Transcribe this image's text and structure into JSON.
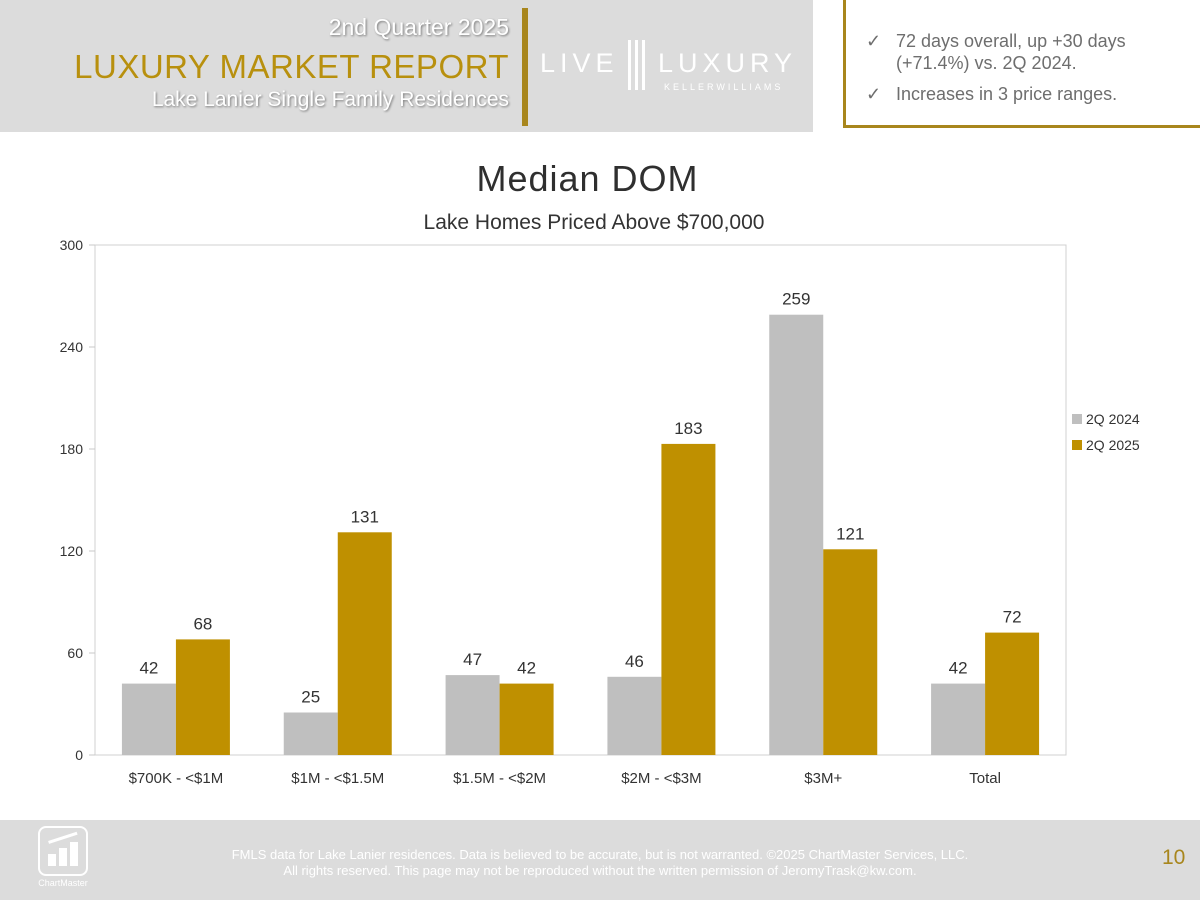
{
  "header": {
    "quarter": "2nd Quarter 2025",
    "title": "LUXURY MARKET REPORT",
    "subtitle": "Lake Lanier Single Family Residences",
    "logo_left": "LIVE",
    "logo_right": "LUXURY",
    "logo_brand": "KELLERWILLIAMS"
  },
  "highlights": [
    "72 days overall, up +30 days (+71.4%) vs. 2Q 2024.",
    "Increases in 3 price ranges."
  ],
  "footer": {
    "logo_name": "ChartMaster",
    "line1": "FMLS data for Lake Lanier residences.  Data is believed to be accurate, but is not warranted.   ©2025  ChartMaster Services, LLC.",
    "line2": "All rights reserved. This page may not be reproduced without the written permission of JeromyTrask@kw.com.",
    "page_number": "10"
  },
  "colors": {
    "gold": "#bf9000",
    "gray_bar": "#bfbfbf",
    "accent_line": "#a8861d"
  },
  "chart_data": {
    "type": "bar",
    "title": "Median DOM",
    "subtitle": "Lake Homes Priced Above $700,000",
    "categories": [
      "$700K - <$1M",
      "$1M - <$1.5M",
      "$1.5M - <$2M",
      "$2M - <$3M",
      "$3M+",
      "Total"
    ],
    "series": [
      {
        "name": "2Q 2024",
        "values": [
          42,
          25,
          47,
          46,
          259,
          42
        ],
        "color": "#bfbfbf"
      },
      {
        "name": "2Q 2025",
        "values": [
          68,
          131,
          42,
          183,
          121,
          72
        ],
        "color": "#bf9000"
      }
    ],
    "ylim": [
      0,
      300
    ],
    "yticks": [
      0,
      60,
      120,
      180,
      240,
      300
    ],
    "grid": false,
    "data_labels": true,
    "legend": "right"
  }
}
